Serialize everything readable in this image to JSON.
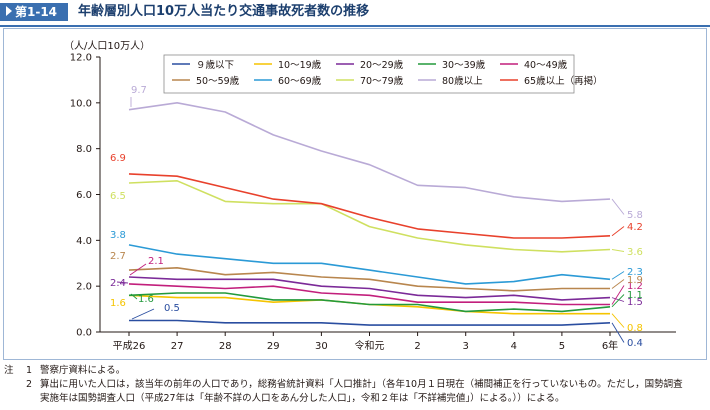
{
  "header": {
    "figure_label": "第1-14図",
    "title": "年齢層別人口10万人当たり交通事故死者数の推移"
  },
  "chart_data": {
    "type": "line",
    "y_unit": "（人/人口10万人）",
    "ylim": [
      0,
      12
    ],
    "yticks": [
      "0.0",
      "2.0",
      "4.0",
      "6.0",
      "8.0",
      "10.0",
      "12.0"
    ],
    "categories": [
      "平成26",
      "27",
      "28",
      "29",
      "30",
      "令和元",
      "2",
      "3",
      "4",
      "5",
      "6年"
    ],
    "grid": false,
    "legend_position": "top",
    "series": [
      {
        "name": "９歳以下",
        "color": "#2a4ea0",
        "values": [
          0.5,
          0.5,
          0.4,
          0.4,
          0.4,
          0.3,
          0.3,
          0.3,
          0.3,
          0.3,
          0.4
        ],
        "first_label": "0.5",
        "last_label": "0.4"
      },
      {
        "name": "10～19歳",
        "color": "#f5c400",
        "values": [
          1.6,
          1.5,
          1.5,
          1.3,
          1.4,
          1.2,
          1.1,
          0.9,
          0.8,
          0.8,
          0.8
        ],
        "first_label": "1.6",
        "last_label": "0.8"
      },
      {
        "name": "20～29歳",
        "color": "#7b2a98",
        "values": [
          2.4,
          2.3,
          2.3,
          2.3,
          2.0,
          1.9,
          1.6,
          1.5,
          1.6,
          1.4,
          1.5
        ],
        "first_label": "2.4",
        "last_label": "1.5"
      },
      {
        "name": "30～39歳",
        "color": "#239a3c",
        "values": [
          1.6,
          1.7,
          1.7,
          1.4,
          1.4,
          1.2,
          1.2,
          0.9,
          1.0,
          0.9,
          1.1
        ],
        "first_label": "1.6",
        "last_label": "1.1"
      },
      {
        "name": "40～49歳",
        "color": "#c21f7c",
        "values": [
          2.1,
          2.0,
          1.9,
          2.0,
          1.7,
          1.6,
          1.3,
          1.3,
          1.3,
          1.2,
          1.2
        ],
        "first_label": "2.1",
        "last_label": "1.2"
      },
      {
        "name": "50～59歳",
        "color": "#b8864e",
        "values": [
          2.7,
          2.8,
          2.5,
          2.6,
          2.4,
          2.3,
          2.0,
          1.9,
          1.8,
          1.9,
          1.9
        ],
        "first_label": "2.7",
        "last_label": "1.9"
      },
      {
        "name": "60～69歳",
        "color": "#2b9ad6",
        "values": [
          3.8,
          3.4,
          3.2,
          3.0,
          3.0,
          2.7,
          2.4,
          2.1,
          2.2,
          2.5,
          2.3
        ],
        "first_label": "3.8",
        "last_label": "2.3"
      },
      {
        "name": "70～79歳",
        "color": "#cfe060",
        "values": [
          6.5,
          6.6,
          5.7,
          5.6,
          5.6,
          4.6,
          4.1,
          3.8,
          3.6,
          3.5,
          3.6
        ],
        "first_label": "6.5",
        "last_label": "3.6"
      },
      {
        "name": "80歳以上",
        "color": "#b9aad6",
        "values": [
          9.7,
          10.0,
          9.6,
          8.6,
          7.9,
          7.3,
          6.4,
          6.3,
          5.9,
          5.7,
          5.8
        ],
        "first_label": "9.7",
        "last_label": "5.8"
      },
      {
        "name": "65歳以上（再掲）",
        "color": "#e8412c",
        "values": [
          6.9,
          6.8,
          6.3,
          5.8,
          5.6,
          5.0,
          4.5,
          4.3,
          4.1,
          4.1,
          4.2
        ],
        "first_label": "6.9",
        "last_label": "4.2"
      }
    ]
  },
  "notes": {
    "label": "注",
    "items": [
      {
        "num": "1",
        "lines": [
          "警察庁資料による。"
        ]
      },
      {
        "num": "2",
        "lines": [
          "算出に用いた人口は，該当年の前年の人口であり，総務省統計資料「人口推計」（各年10月１日現在（補間補正を行っていないもの。ただし，国勢調査",
          "実施年は国勢調査人口（平成27年は「年齢不詳の人口をあん分した人口」，令和２年は「不詳補完値」）による。））による。"
        ]
      }
    ]
  }
}
